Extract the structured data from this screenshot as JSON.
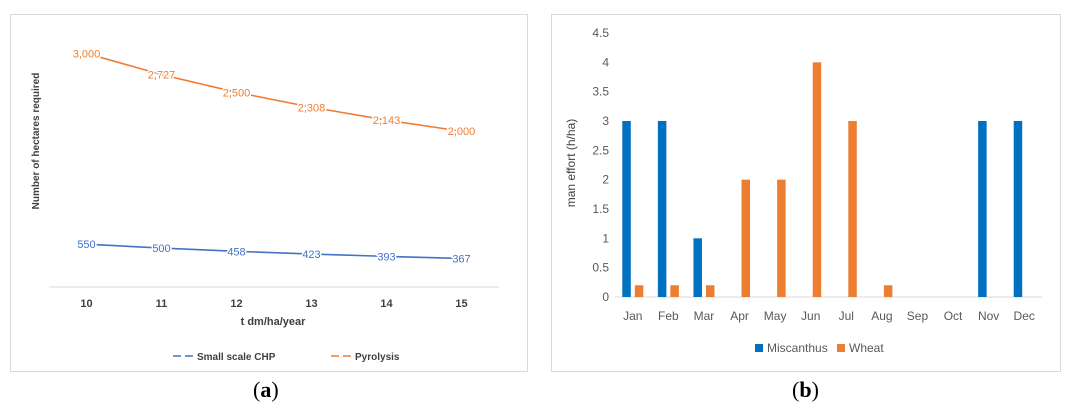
{
  "chart_data": [
    {
      "type": "line",
      "panel_label": "a",
      "title": "",
      "xlabel": "t dm/ha/year",
      "ylabel": "Number of hectares required",
      "x": [
        10,
        11,
        12,
        13,
        14,
        15
      ],
      "x_tick_labels": [
        "10",
        "11",
        "12",
        "13",
        "14",
        "15"
      ],
      "series": [
        {
          "name": "Small scale CHP",
          "values": [
            550,
            500,
            458,
            423,
            393,
            367
          ],
          "data_labels": [
            "550",
            "500",
            "458",
            "423",
            "393",
            "367"
          ],
          "color": "#4472C4"
        },
        {
          "name": "Pyrolysis",
          "values": [
            3000,
            2727,
            2500,
            2308,
            2143,
            2000
          ],
          "data_labels": [
            "3,000",
            "2,727",
            "2,500",
            "2,308",
            "2,143",
            "2,000"
          ],
          "color": "#ED7D31"
        }
      ],
      "ylim": [
        0,
        3300
      ],
      "grid": false,
      "legend": "bottom"
    },
    {
      "type": "bar",
      "panel_label": "b",
      "title": "",
      "xlabel": "",
      "ylabel": "man effort (h/ha)",
      "categories": [
        "Jan",
        "Feb",
        "Mar",
        "Apr",
        "May",
        "Jun",
        "Jul",
        "Aug",
        "Sep",
        "Oct",
        "Nov",
        "Dec"
      ],
      "series": [
        {
          "name": "Miscanthus",
          "values": [
            3,
            3,
            1,
            0,
            0,
            0,
            0,
            0,
            0,
            0,
            3,
            3
          ],
          "color": "#0070C0"
        },
        {
          "name": "Wheat",
          "values": [
            0.2,
            0.2,
            0.2,
            2,
            2,
            4,
            3,
            0.2,
            0,
            0,
            0,
            0
          ],
          "color": "#ED7D31"
        }
      ],
      "y_ticks": [
        "0",
        "0.5",
        "1",
        "1.5",
        "2",
        "2.5",
        "3",
        "3.5",
        "4",
        "4.5"
      ],
      "ylim": [
        0,
        4.5
      ],
      "grid": false,
      "legend": "bottom"
    }
  ]
}
